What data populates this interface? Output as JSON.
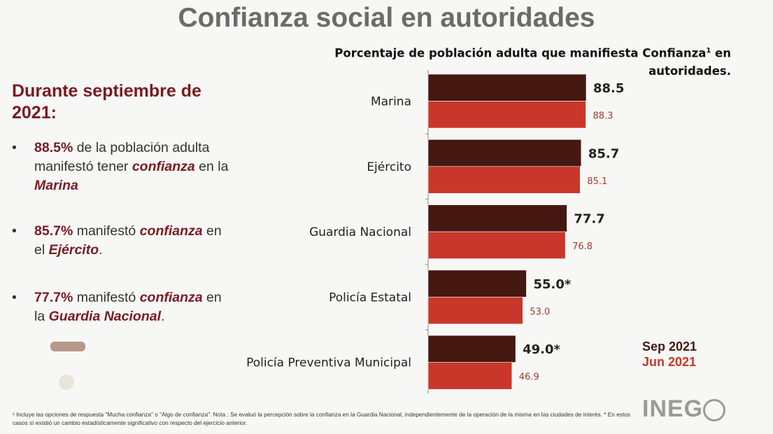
{
  "title": "Confianza social en autoridades",
  "subtitle": {
    "text": "Porcentaje de población adulta que manifiesta Confianza",
    "sup": "1",
    "text2": " en autoridades."
  },
  "left": {
    "lead": "Durante septiembre de 2021:",
    "bullets": [
      {
        "pct": "88.5%",
        "t1": " de la población adulta manifestó tener ",
        "k": "confianza",
        "t2": " en la ",
        "ent": "Marina",
        "end": ""
      },
      {
        "pct": "85.7%",
        "t1": " manifestó ",
        "k": "confianza",
        "t2": " en el ",
        "ent": "Ejército",
        "end": "."
      },
      {
        "pct": "77.7%",
        "t1": "  manifestó ",
        "k": "confianza",
        "t2": " en la  ",
        "ent": "Guardia Nacional",
        "end": "."
      }
    ]
  },
  "footnote": "¹ Incluye las opciones de respuesta \"Mucha confianza\" o \"Algo de confianza\". Nota : Se evaluó la percepción sobre la confianza en la Guardia Nacional, independientemente de la operación de la misma en las ciudades de interés. * En estos casos sí existió un cambio estadísticamente significativo con respecto del ejercicio anterior.",
  "logo": "INEGI",
  "chart_data": {
    "type": "bar",
    "orientation": "horizontal",
    "categories": [
      "Marina",
      "Ejército",
      "Guardia Nacional",
      "Policía Estatal",
      "Policía Preventiva Municipal"
    ],
    "series": [
      {
        "name": "Sep 2021",
        "color": "#451812",
        "values": [
          88.5,
          85.7,
          77.7,
          55.0,
          49.0
        ],
        "labels": [
          "88.5",
          "85.7",
          "77.7",
          "55.0*",
          "49.0*"
        ]
      },
      {
        "name": "Jun 2021",
        "color": "#c8372a",
        "values": [
          88.3,
          85.1,
          76.8,
          53.0,
          46.9
        ],
        "labels": [
          "88.3",
          "85.1",
          "76.8",
          "53.0",
          "46.9"
        ]
      }
    ],
    "xlim": [
      0,
      100
    ],
    "grid": false,
    "legend": "bottom-right"
  }
}
